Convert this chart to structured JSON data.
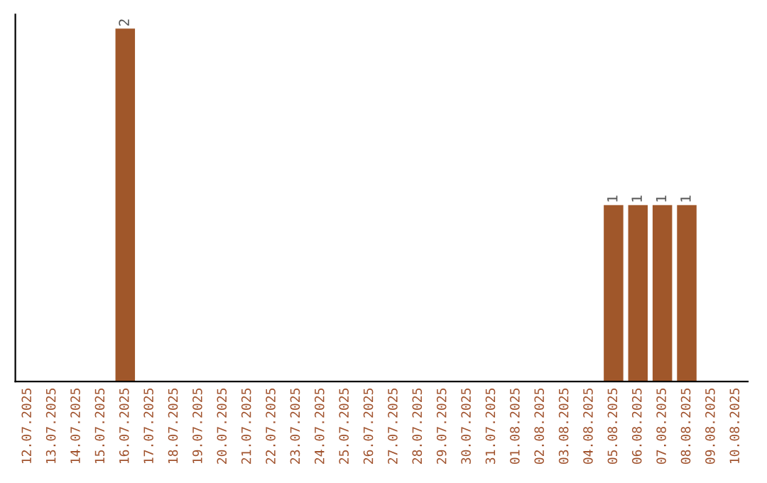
{
  "chart_data": {
    "type": "bar",
    "categories": [
      "12.07.2025",
      "13.07.2025",
      "14.07.2025",
      "15.07.2025",
      "16.07.2025",
      "17.07.2025",
      "18.07.2025",
      "19.07.2025",
      "20.07.2025",
      "21.07.2025",
      "22.07.2025",
      "23.07.2025",
      "24.07.2025",
      "25.07.2025",
      "26.07.2025",
      "27.07.2025",
      "28.07.2025",
      "29.07.2025",
      "30.07.2025",
      "31.07.2025",
      "01.08.2025",
      "02.08.2025",
      "03.08.2025",
      "04.08.2025",
      "05.08.2025",
      "06.08.2025",
      "07.08.2025",
      "08.08.2025",
      "09.08.2025",
      "10.08.2025"
    ],
    "values": [
      0,
      0,
      0,
      0,
      2,
      0,
      0,
      0,
      0,
      0,
      0,
      0,
      0,
      0,
      0,
      0,
      0,
      0,
      0,
      0,
      0,
      0,
      0,
      0,
      1,
      1,
      1,
      1,
      0,
      0
    ],
    "color": "#a0572a",
    "value_labels": [
      null,
      null,
      null,
      null,
      "2",
      null,
      null,
      null,
      null,
      null,
      null,
      null,
      null,
      null,
      null,
      null,
      null,
      null,
      null,
      null,
      null,
      null,
      null,
      null,
      "1",
      "1",
      "1",
      "1",
      null,
      null
    ],
    "grid": false,
    "tick_labels": "x"
  }
}
